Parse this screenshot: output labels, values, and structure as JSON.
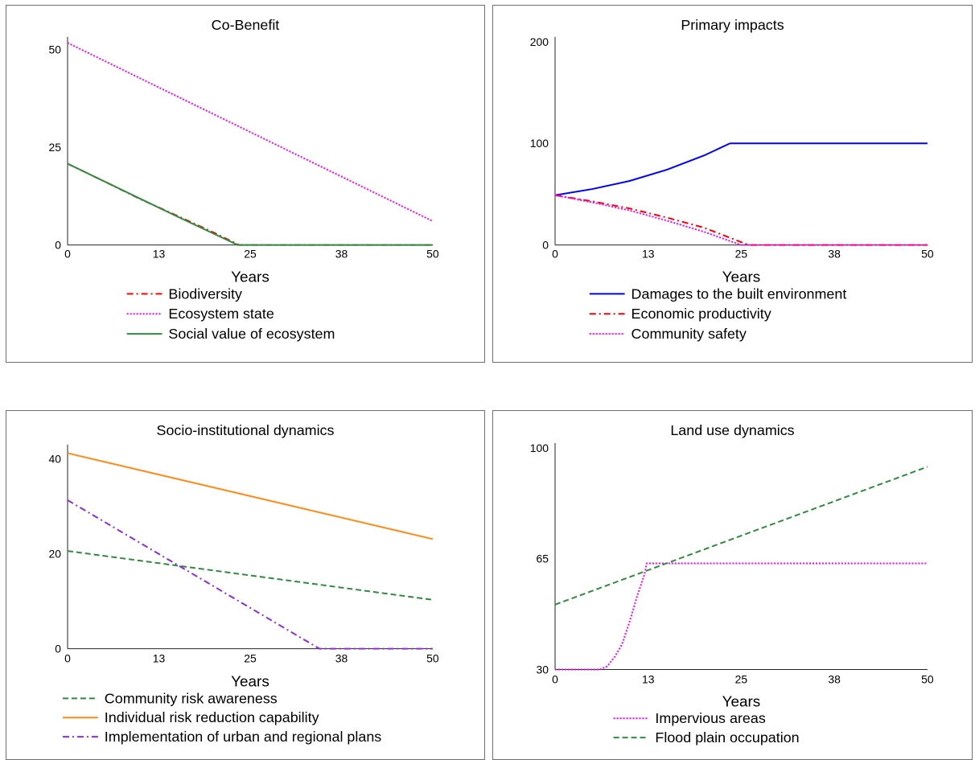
{
  "charts": [
    {
      "title": "Co-Benefit",
      "chart_data": {
        "type": "line",
        "title": "Co-Benefit",
        "xlabel": "Years",
        "ylabel": "",
        "xlim": [
          0,
          50
        ],
        "ylim": [
          0,
          52
        ],
        "xticks": [
          "0",
          "13",
          "25",
          "38",
          "50"
        ],
        "yticks": [
          {
            "value": 0,
            "label": "0"
          },
          {
            "value": 25,
            "label": "25"
          },
          {
            "value": 50,
            "label": "50"
          }
        ],
        "legend_position": "bottom",
        "grid": false,
        "series": [
          {
            "name": "Biodiversity",
            "color": "#ff0000",
            "dash": "dashdot",
            "points": [
              [
                0,
                20.8
              ],
              [
                5,
                16.3
              ],
              [
                10,
                11.7
              ],
              [
                15,
                7.5
              ],
              [
                20,
                3.2
              ],
              [
                23.5,
                0
              ],
              [
                50,
                0
              ]
            ]
          },
          {
            "name": "Ecosystem state",
            "color": "#ff00ff",
            "dash": "dotted",
            "points": [
              [
                0,
                51.7
              ],
              [
                50,
                6.1
              ]
            ]
          },
          {
            "name": "Social value of ecosystem",
            "color": "#2e8b3e",
            "dash": "solid",
            "points": [
              [
                0,
                20.8
              ],
              [
                5,
                16.3
              ],
              [
                10,
                11.8
              ],
              [
                15,
                7.3
              ],
              [
                20,
                2.9
              ],
              [
                23.3,
                0
              ],
              [
                50,
                0
              ]
            ]
          }
        ]
      }
    },
    {
      "title": "Primary impacts",
      "chart_data": {
        "type": "line",
        "title": "Primary impacts",
        "xlabel": "Years",
        "ylabel": "",
        "xlim": [
          0,
          50
        ],
        "ylim": [
          0,
          200
        ],
        "xticks": [
          "0",
          "13",
          "25",
          "38",
          "50"
        ],
        "yticks": [
          {
            "value": 0,
            "label": "0"
          },
          {
            "value": 100,
            "label": "100"
          },
          {
            "value": 200,
            "label": "200"
          }
        ],
        "legend_position": "bottom",
        "grid": false,
        "series": [
          {
            "name": "Damages to the built environment",
            "color": "#0000ff",
            "dash": "solid",
            "points": [
              [
                0,
                49
              ],
              [
                5,
                55
              ],
              [
                10,
                63
              ],
              [
                15,
                74
              ],
              [
                20,
                88
              ],
              [
                23.5,
                100
              ],
              [
                50,
                100
              ]
            ]
          },
          {
            "name": "Economic productivity",
            "color": "#ff0000",
            "dash": "dashdot",
            "points": [
              [
                0,
                49
              ],
              [
                5,
                43
              ],
              [
                10,
                36
              ],
              [
                15,
                27
              ],
              [
                20,
                17
              ],
              [
                26,
                0
              ],
              [
                50,
                0
              ]
            ]
          },
          {
            "name": "Community safety",
            "color": "#ff00ff",
            "dash": "dotted",
            "points": [
              [
                0,
                49
              ],
              [
                5,
                42
              ],
              [
                10,
                34
              ],
              [
                15,
                24
              ],
              [
                20,
                13
              ],
              [
                25,
                0
              ],
              [
                50,
                0
              ]
            ]
          }
        ]
      }
    },
    {
      "title": "Socio-institutional dynamics",
      "chart_data": {
        "type": "line",
        "title": "Socio-institutional dynamics",
        "xlabel": "Years",
        "ylabel": "",
        "xlim": [
          0,
          50
        ],
        "ylim": [
          0,
          42
        ],
        "xticks": [
          "0",
          "13",
          "25",
          "38",
          "50"
        ],
        "yticks": [
          {
            "value": 0,
            "label": "0"
          },
          {
            "value": 20,
            "label": "20"
          },
          {
            "value": 40,
            "label": "40"
          }
        ],
        "legend_position": "bottom",
        "grid": false,
        "series": [
          {
            "name": "Community risk awareness",
            "color": "#2e8b3e",
            "dash": "dashed",
            "points": [
              [
                0,
                20.6
              ],
              [
                50,
                10.3
              ]
            ]
          },
          {
            "name": "Individual risk reduction capability",
            "color": "#ff8c1a",
            "dash": "solid",
            "points": [
              [
                0,
                41.2
              ],
              [
                50,
                23.1
              ]
            ]
          },
          {
            "name": "Implementation of urban and regional plans",
            "color": "#8a2be2",
            "dash": "dashdot",
            "points": [
              [
                0,
                31.3
              ],
              [
                34.5,
                0
              ],
              [
                50,
                0
              ]
            ]
          }
        ]
      }
    },
    {
      "title": "Land use dynamics",
      "chart_data": {
        "type": "line",
        "title": "Land use dynamics",
        "xlabel": "Years",
        "ylabel": "",
        "xlim": [
          0,
          50
        ],
        "ylim": [
          30,
          100
        ],
        "xticks": [
          "0",
          "13",
          "25",
          "38",
          "50"
        ],
        "yticks": [
          {
            "value": 30,
            "label": "30"
          },
          {
            "value": 65,
            "label": "65"
          },
          {
            "value": 100,
            "label": "100"
          }
        ],
        "legend_position": "bottom",
        "grid": false,
        "series": [
          {
            "name": "Impervious areas",
            "color": "#ff00ff",
            "dash": "dotted",
            "points": [
              [
                0,
                30
              ],
              [
                6,
                30
              ],
              [
                7,
                31
              ],
              [
                8,
                34
              ],
              [
                9,
                38
              ],
              [
                10,
                45
              ],
              [
                11,
                53
              ],
              [
                12,
                60
              ],
              [
                12.3,
                63.5
              ],
              [
                50,
                63.5
              ]
            ]
          },
          {
            "name": "Flood plain occupation",
            "color": "#2e8b3e",
            "dash": "dashed",
            "points": [
              [
                0,
                50.5
              ],
              [
                50,
                94
              ]
            ]
          }
        ]
      }
    }
  ]
}
